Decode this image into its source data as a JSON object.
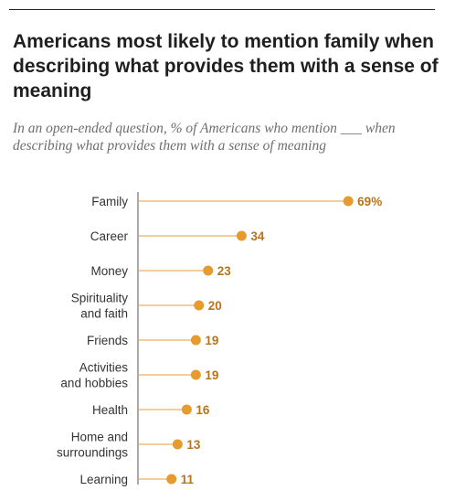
{
  "chart_data": {
    "type": "dot",
    "title": "Americans most likely to mention family when describing what provides them with a sense of meaning",
    "subtitle": "In an open-ended question, % of Americans who mention ___ when describing what provides them with a sense of meaning",
    "categories": [
      [
        "Family"
      ],
      [
        "Career"
      ],
      [
        "Money"
      ],
      [
        "Spirituality",
        "and faith"
      ],
      [
        "Friends"
      ],
      [
        "Activities",
        "and hobbies"
      ],
      [
        "Health"
      ],
      [
        "Home and",
        "surroundings"
      ],
      [
        "Learning"
      ]
    ],
    "values": [
      69,
      34,
      23,
      20,
      19,
      19,
      16,
      13,
      11
    ],
    "value_labels": [
      "69%",
      "34",
      "23",
      "20",
      "19",
      "19",
      "16",
      "13",
      "11"
    ],
    "xlim": [
      0,
      100
    ],
    "grid": false,
    "colors": {
      "dot": "#e69b2e",
      "line": "#f3ce9c",
      "value_text": "#b8741a",
      "axis": "#555555"
    }
  }
}
